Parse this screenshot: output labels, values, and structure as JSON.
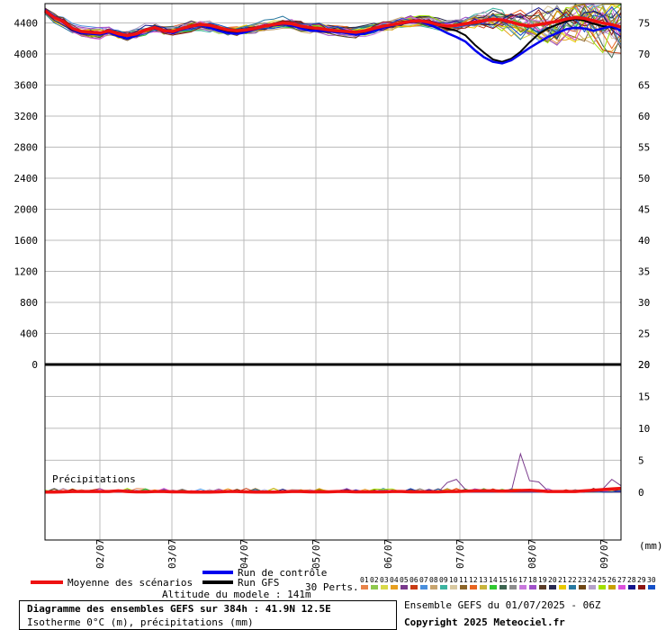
{
  "chart_data": {
    "type": "line",
    "title": "Diagramme des ensembles GEFS sur 384h : 41.9N 12.5E",
    "subtitle": "Isotherme 0°C (m), précipitations (mm)",
    "model_altitude": "Altitude du modele : 141m",
    "run_info": "Ensemble GEFS du 01/07/2025 - 06Z",
    "copyright": "Copyright 2025 Meteociel.fr",
    "precip_label": "Précipitations",
    "mm_label": "(mm)",
    "x_ticks": [
      "02/07",
      "03/07",
      "04/07",
      "05/07",
      "06/07",
      "07/07",
      "08/07",
      "09/07"
    ],
    "top_panel": {
      "ylabel_left_ticks": [
        4400,
        4000,
        3600,
        3200,
        2800,
        2400,
        2000,
        1600,
        1200,
        800,
        400,
        0
      ],
      "ylabel_right_ticks": [
        75,
        70,
        65,
        60,
        55,
        50,
        45,
        40,
        35,
        30,
        25,
        20
      ],
      "ylim": [
        0,
        4650
      ],
      "mean_iso0": [
        4560,
        4470,
        4420,
        4330,
        4290,
        4280,
        4270,
        4300,
        4260,
        4240,
        4260,
        4310,
        4340,
        4300,
        4290,
        4330,
        4360,
        4380,
        4370,
        4340,
        4310,
        4300,
        4310,
        4330,
        4360,
        4380,
        4400,
        4390,
        4360,
        4340,
        4330,
        4310,
        4300,
        4290,
        4280,
        4300,
        4330,
        4360,
        4380,
        4400,
        4420,
        4430,
        4410,
        4380,
        4360,
        4370,
        4390,
        4410,
        4430,
        4450,
        4440,
        4410,
        4380,
        4360,
        4380,
        4400,
        4420,
        4450,
        4470,
        4460,
        4430,
        4400,
        4380,
        4350
      ],
      "control_iso0": [
        4570,
        4480,
        4430,
        4320,
        4270,
        4260,
        4250,
        4280,
        4230,
        4200,
        4240,
        4310,
        4330,
        4290,
        4270,
        4320,
        4350,
        4370,
        4340,
        4300,
        4270,
        4260,
        4280,
        4320,
        4360,
        4370,
        4390,
        4370,
        4330,
        4300,
        4300,
        4290,
        4280,
        4270,
        4250,
        4260,
        4300,
        4340,
        4370,
        4390,
        4410,
        4420,
        4380,
        4330,
        4270,
        4220,
        4160,
        4050,
        3960,
        3900,
        3880,
        3920,
        4000,
        4080,
        4150,
        4220,
        4270,
        4320,
        4340,
        4330,
        4300,
        4330,
        4360,
        4300
      ],
      "gfs_iso0": [
        4560,
        4470,
        4410,
        4310,
        4280,
        4270,
        4260,
        4290,
        4250,
        4230,
        4260,
        4320,
        4340,
        4300,
        4280,
        4330,
        4370,
        4390,
        4360,
        4320,
        4290,
        4280,
        4300,
        4340,
        4370,
        4380,
        4400,
        4380,
        4340,
        4320,
        4310,
        4300,
        4290,
        4280,
        4260,
        4290,
        4320,
        4350,
        4370,
        4390,
        4410,
        4430,
        4400,
        4370,
        4330,
        4300,
        4240,
        4120,
        4020,
        3930,
        3900,
        3940,
        4030,
        4150,
        4260,
        4330,
        4380,
        4420,
        4450,
        4430,
        4390,
        4360,
        4340,
        4310
      ]
    },
    "bottom_panel": {
      "ylabel_right_ticks": [
        20,
        15,
        10,
        5,
        0
      ],
      "ylim": [
        -7.5,
        20
      ],
      "mean_precip": [
        0,
        0,
        0.05,
        0.1,
        0.1,
        0.1,
        0.1,
        0.1,
        0.2,
        0.1,
        0.05,
        0.05,
        0.1,
        0.1,
        0.05,
        0.05,
        0,
        0,
        0,
        0.05,
        0.1,
        0.1,
        0.05,
        0,
        0,
        0,
        0.05,
        0.1,
        0.1,
        0.05,
        0.05,
        0.05,
        0.1,
        0.1,
        0.05,
        0.05,
        0.05,
        0.05,
        0.1,
        0.1,
        0.05,
        0.05,
        0.05,
        0.05,
        0.1,
        0.1,
        0.15,
        0.2,
        0.2,
        0.2,
        0.15,
        0.2,
        0.25,
        0.3,
        0.2,
        0.1,
        0.1,
        0.1,
        0.1,
        0.2,
        0.3,
        0.4,
        0.5,
        0.6
      ],
      "peak_member_precip": [
        0,
        0,
        0,
        0,
        0.1,
        0.2,
        0.1,
        0,
        0.1,
        0.4,
        0.2,
        0,
        0,
        0,
        0.3,
        0,
        0,
        0,
        0,
        0,
        0.1,
        0,
        0,
        0,
        0.1,
        0,
        0,
        0,
        0,
        0.2,
        0.1,
        0,
        0.2,
        0.5,
        0,
        0,
        0,
        0,
        0,
        0.2,
        0.3,
        0,
        0,
        0,
        1.5,
        2.0,
        0.4,
        0,
        0,
        0.2,
        0.3,
        0.1,
        6.0,
        1.8,
        1.6,
        0.2,
        0,
        0,
        0,
        0.3,
        0.2,
        0.5,
        2.0,
        1.0
      ]
    },
    "legend": {
      "mean": "Moyenne des scénarios",
      "control": "Run de contrôle",
      "gfs": "Run GFS",
      "perts": "30 Perts."
    },
    "colors": {
      "mean": "#ee1111",
      "control": "#0000ee",
      "gfs": "#000000",
      "grid": "#bbbbbb"
    },
    "perturbations": [
      {
        "id": "01",
        "color": "#e8844a"
      },
      {
        "id": "02",
        "color": "#8fc84e"
      },
      {
        "id": "03",
        "color": "#d9d94a"
      },
      {
        "id": "04",
        "color": "#e8a020"
      },
      {
        "id": "05",
        "color": "#7a3a8c"
      },
      {
        "id": "06",
        "color": "#c83c14"
      },
      {
        "id": "07",
        "color": "#4a8fdc"
      },
      {
        "id": "08",
        "color": "#c8a46e"
      },
      {
        "id": "09",
        "color": "#3cb4a0"
      },
      {
        "id": "10",
        "color": "#d8c8a0"
      },
      {
        "id": "11",
        "color": "#8c6428"
      },
      {
        "id": "12",
        "color": "#e86420"
      },
      {
        "id": "13",
        "color": "#c8b43c"
      },
      {
        "id": "14",
        "color": "#30c830"
      },
      {
        "id": "15",
        "color": "#3c6450"
      },
      {
        "id": "16",
        "color": "#8c8c8c"
      },
      {
        "id": "17",
        "color": "#c878dc"
      },
      {
        "id": "18",
        "color": "#a050c8"
      },
      {
        "id": "19",
        "color": "#5a3c28"
      },
      {
        "id": "20",
        "color": "#282850"
      },
      {
        "id": "21",
        "color": "#e8c800"
      },
      {
        "id": "22",
        "color": "#2878a0"
      },
      {
        "id": "23",
        "color": "#6e4614"
      },
      {
        "id": "24",
        "color": "#b4a0c8"
      },
      {
        "id": "25",
        "color": "#a0e000"
      },
      {
        "id": "26",
        "color": "#c8a000"
      },
      {
        "id": "27",
        "color": "#dc50dc"
      },
      {
        "id": "28",
        "color": "#14148c"
      },
      {
        "id": "29",
        "color": "#8c1414"
      },
      {
        "id": "30",
        "color": "#1450c8"
      }
    ]
  }
}
